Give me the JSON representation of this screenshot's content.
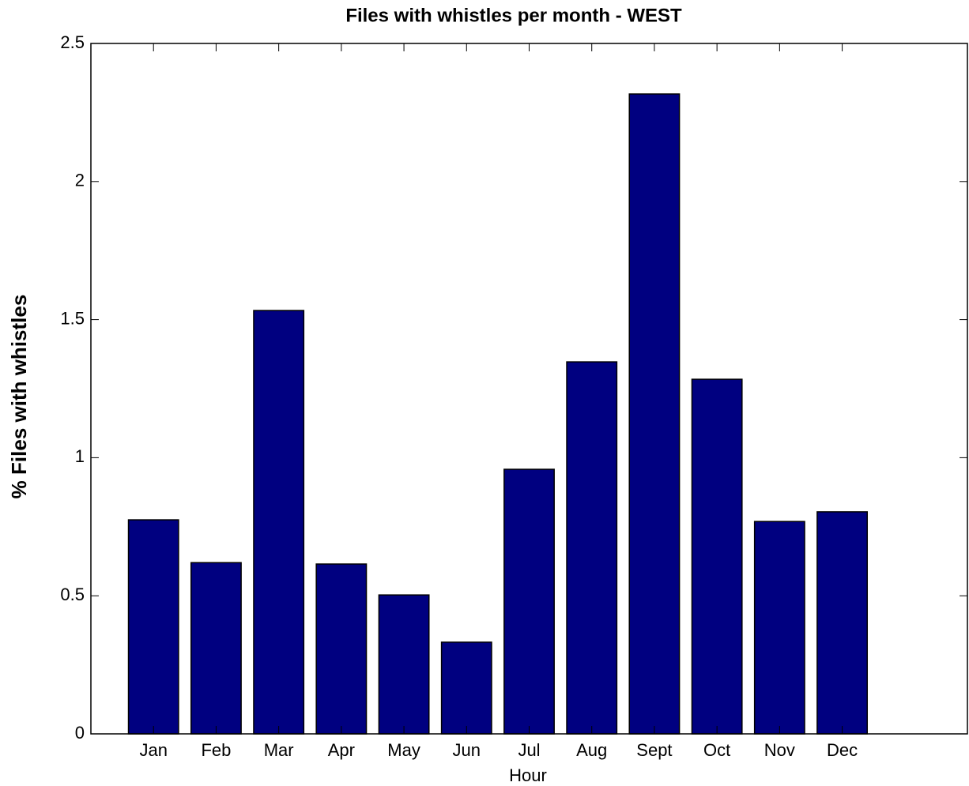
{
  "chart_data": {
    "type": "bar",
    "title": "Files with whistles per month - WEST",
    "x_label": "Hour",
    "y_label": "% Files with whistles",
    "categories": [
      "Jan",
      "Feb",
      "Mar",
      "Apr",
      "May",
      "Jun",
      "Jul",
      "Aug",
      "Sept",
      "Oct",
      "Nov",
      "Dec"
    ],
    "values": [
      0.775,
      0.62,
      1.533,
      0.615,
      0.503,
      0.332,
      0.958,
      1.347,
      2.317,
      1.284,
      0.769,
      0.804
    ],
    "color": "#000080",
    "ylim": [
      0,
      2.5
    ],
    "yticks": [
      0,
      0.5,
      1,
      1.5,
      2,
      2.5
    ],
    "grid": false
  }
}
